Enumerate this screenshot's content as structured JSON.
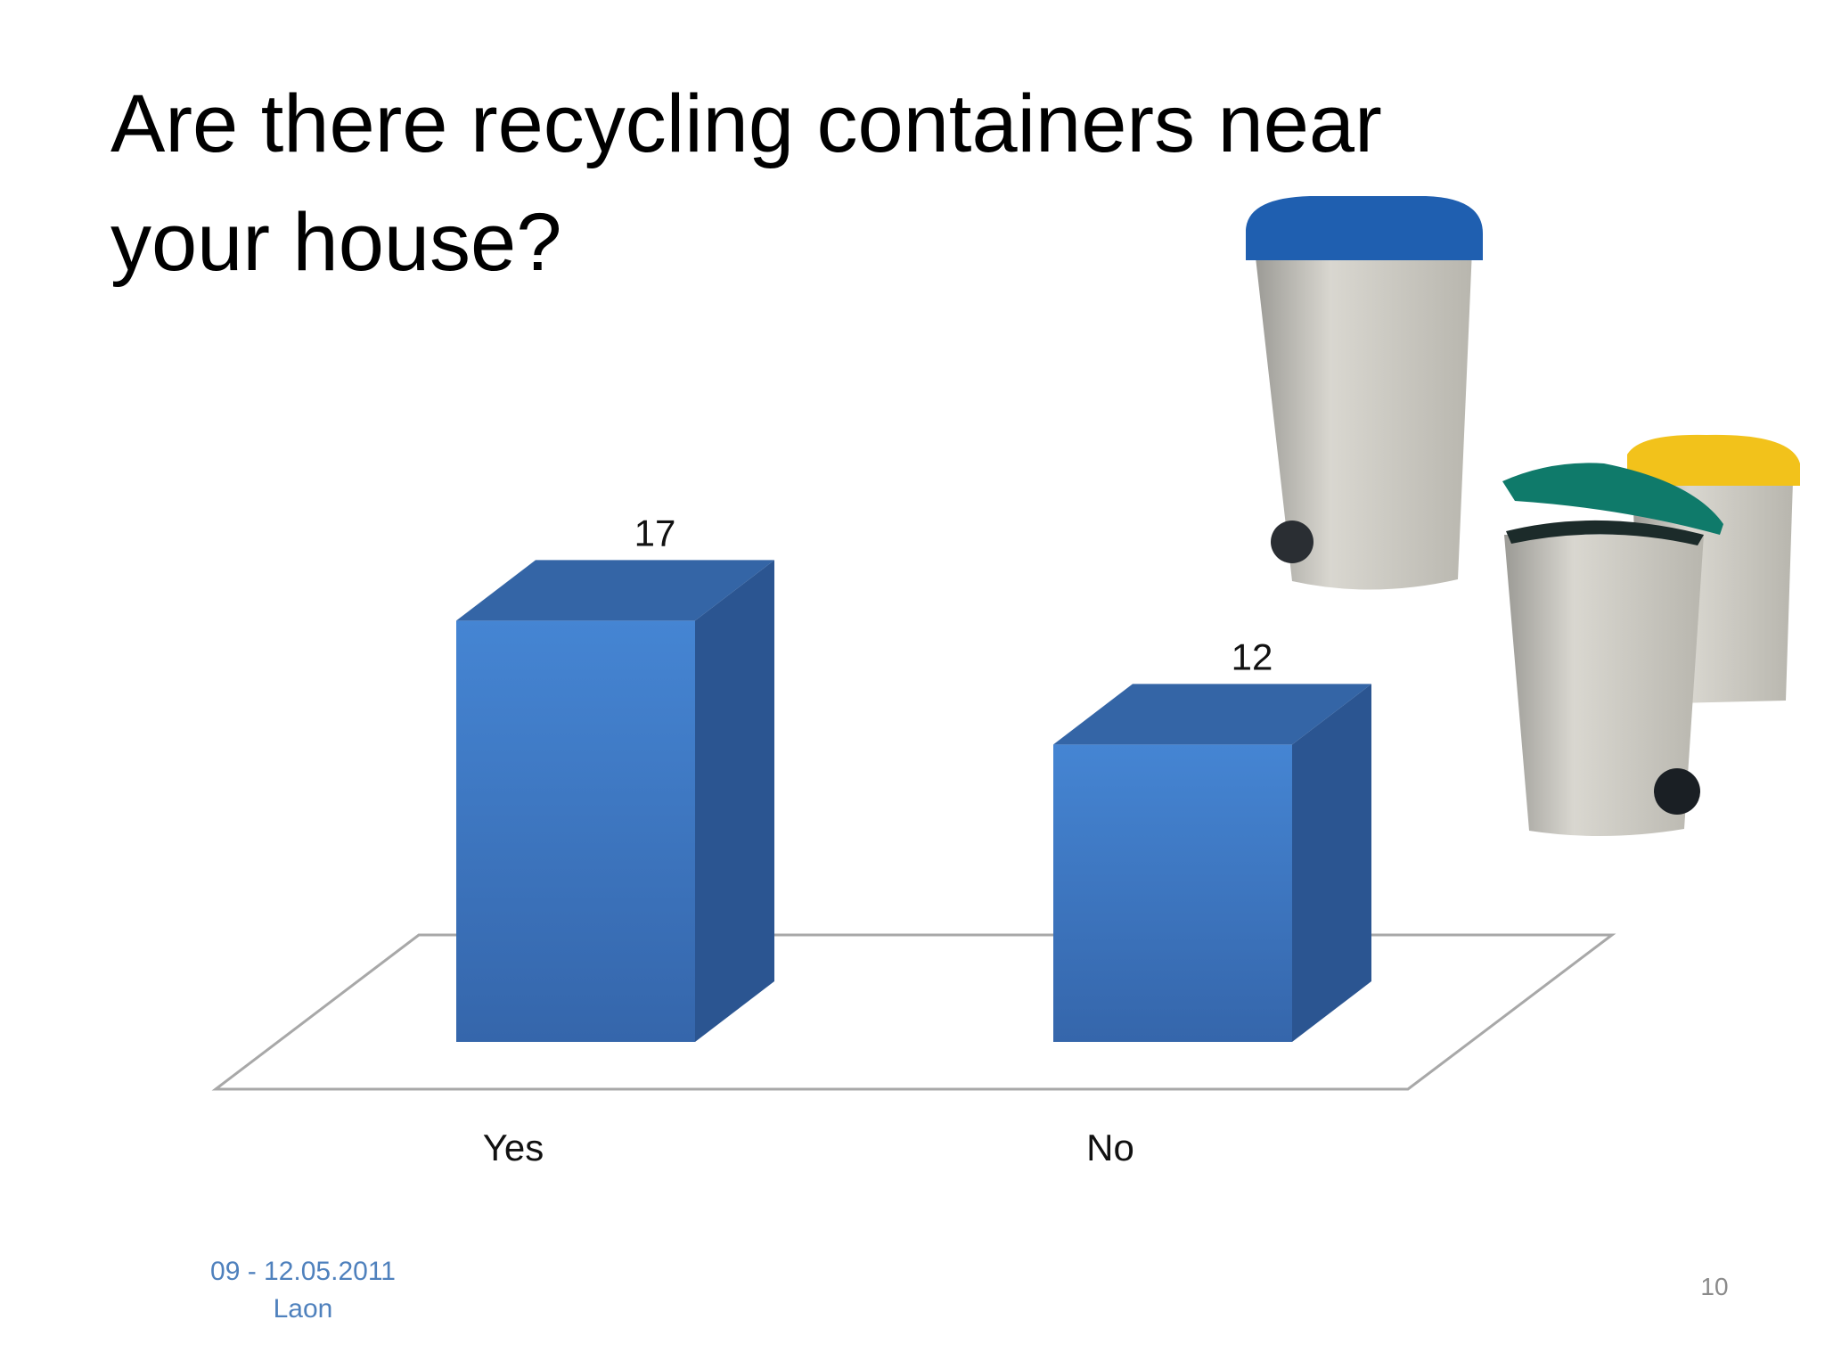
{
  "chart_data": {
    "type": "bar3d",
    "title": "Are there recycling containers near your house?",
    "categories": [
      "Yes",
      "No"
    ],
    "values": [
      17,
      12
    ],
    "color": "#3f7cc8"
  },
  "footer": {
    "date": "09 - 12.05.2011",
    "place": "Laon",
    "page": "10"
  }
}
